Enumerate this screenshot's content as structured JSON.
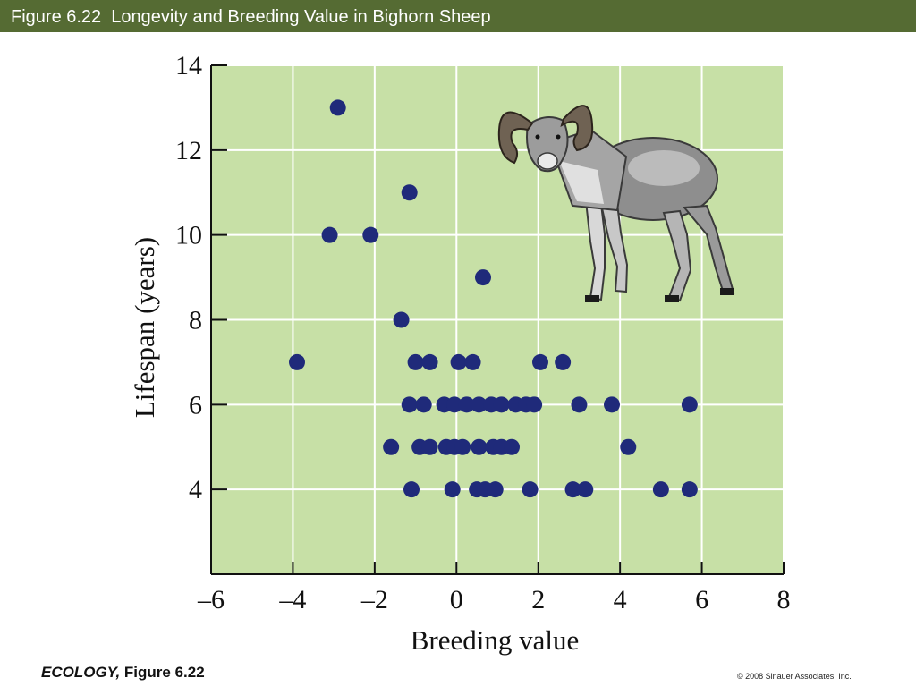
{
  "slide": {
    "title": "Figure 6.22  Longevity and Breeding Value in Bighorn Sheep",
    "footer_source": "ECOLOGY,",
    "footer_figure": "Figure 6.22",
    "copyright": "© 2008 Sinauer Associates, Inc."
  },
  "colors": {
    "title_bar": "#556b33",
    "plot_bg": "#c7e0a6",
    "grid": "#ffffff",
    "points": "#1f2a7a"
  },
  "illustration": {
    "icon": "bighorn-sheep-illustration"
  },
  "chart_data": {
    "type": "scatter",
    "xlabel": "Breeding value",
    "ylabel": "Lifespan (years)",
    "xlim": [
      -6,
      8
    ],
    "ylim": [
      2,
      14
    ],
    "xticks": [
      -6,
      -4,
      -2,
      0,
      2,
      4,
      6,
      8
    ],
    "yticks": [
      4,
      6,
      8,
      10,
      12,
      14
    ],
    "xtick_labels": [
      "–6",
      "–4",
      "–2",
      "0",
      "2",
      "4",
      "6",
      "8"
    ],
    "ytick_labels": [
      "4",
      "6",
      "8",
      "10",
      "12",
      "14"
    ],
    "grid": true,
    "points": [
      {
        "x": -2.9,
        "y": 13
      },
      {
        "x": -1.15,
        "y": 11
      },
      {
        "x": -3.1,
        "y": 10
      },
      {
        "x": -2.1,
        "y": 10
      },
      {
        "x": 0.65,
        "y": 9
      },
      {
        "x": -1.35,
        "y": 8
      },
      {
        "x": -3.9,
        "y": 7
      },
      {
        "x": -1.0,
        "y": 7
      },
      {
        "x": -0.65,
        "y": 7
      },
      {
        "x": 0.05,
        "y": 7
      },
      {
        "x": 0.4,
        "y": 7
      },
      {
        "x": 2.05,
        "y": 7
      },
      {
        "x": 2.6,
        "y": 7
      },
      {
        "x": -1.15,
        "y": 6
      },
      {
        "x": -0.8,
        "y": 6
      },
      {
        "x": -0.3,
        "y": 6
      },
      {
        "x": -0.05,
        "y": 6
      },
      {
        "x": 0.25,
        "y": 6
      },
      {
        "x": 0.55,
        "y": 6
      },
      {
        "x": 0.85,
        "y": 6
      },
      {
        "x": 1.1,
        "y": 6
      },
      {
        "x": 1.45,
        "y": 6
      },
      {
        "x": 1.7,
        "y": 6
      },
      {
        "x": 1.9,
        "y": 6
      },
      {
        "x": 3.0,
        "y": 6
      },
      {
        "x": 3.8,
        "y": 6
      },
      {
        "x": 5.7,
        "y": 6
      },
      {
        "x": -1.6,
        "y": 5
      },
      {
        "x": -0.9,
        "y": 5
      },
      {
        "x": -0.65,
        "y": 5
      },
      {
        "x": -0.25,
        "y": 5
      },
      {
        "x": -0.05,
        "y": 5
      },
      {
        "x": 0.15,
        "y": 5
      },
      {
        "x": 0.55,
        "y": 5
      },
      {
        "x": 0.9,
        "y": 5
      },
      {
        "x": 1.1,
        "y": 5
      },
      {
        "x": 1.35,
        "y": 5
      },
      {
        "x": 4.2,
        "y": 5
      },
      {
        "x": -1.1,
        "y": 4
      },
      {
        "x": -0.1,
        "y": 4
      },
      {
        "x": 0.5,
        "y": 4
      },
      {
        "x": 0.7,
        "y": 4
      },
      {
        "x": 0.95,
        "y": 4
      },
      {
        "x": 1.8,
        "y": 4
      },
      {
        "x": 2.85,
        "y": 4
      },
      {
        "x": 3.15,
        "y": 4
      },
      {
        "x": 5.0,
        "y": 4
      },
      {
        "x": 5.7,
        "y": 4
      }
    ]
  }
}
